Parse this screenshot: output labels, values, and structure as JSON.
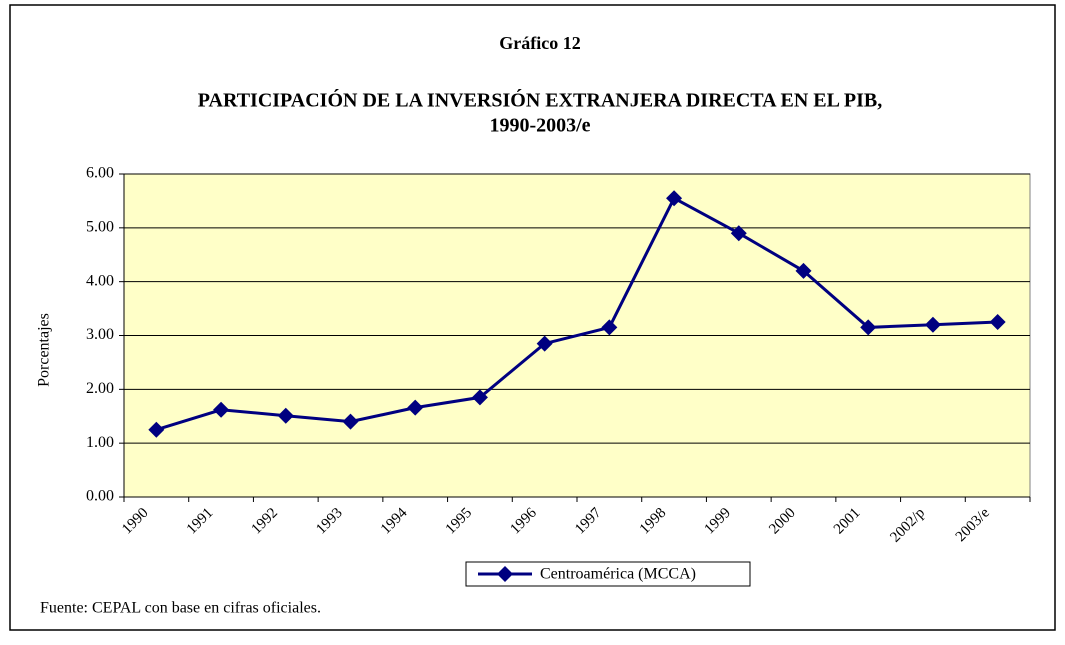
{
  "chart_data": {
    "type": "line",
    "subtitle": "Gráfico 12",
    "title": "PARTICIPACIÓN DE LA INVERSIÓN EXTRANJERA DIRECTA EN EL PIB,",
    "title_line2": "1990-2003/e",
    "y_label": "Porcentajes",
    "source": "Fuente: CEPAL con base en cifras oficiales.",
    "categories": [
      "1990",
      "1991",
      "1992",
      "1993",
      "1994",
      "1995",
      "1996",
      "1997",
      "1998",
      "1999",
      "2000",
      "2001",
      "2002/p",
      "2003/e"
    ],
    "series": [
      {
        "name": "Centroamérica (MCCA)",
        "color": "#000080",
        "values": [
          1.25,
          1.62,
          1.51,
          1.4,
          1.66,
          1.85,
          2.85,
          3.15,
          5.55,
          4.9,
          4.2,
          3.15,
          3.2,
          3.25
        ]
      }
    ],
    "ylim": [
      0,
      6
    ],
    "yticks": [
      {
        "value": 0,
        "label": "0.00"
      },
      {
        "value": 1,
        "label": "1.00"
      },
      {
        "value": 2,
        "label": "2.00"
      },
      {
        "value": 3,
        "label": "3.00"
      },
      {
        "value": 4,
        "label": "4.00"
      },
      {
        "value": 5,
        "label": "5.00"
      },
      {
        "value": 6,
        "label": "6.00"
      }
    ],
    "grid": true,
    "plot_background": "#ffffc8"
  }
}
